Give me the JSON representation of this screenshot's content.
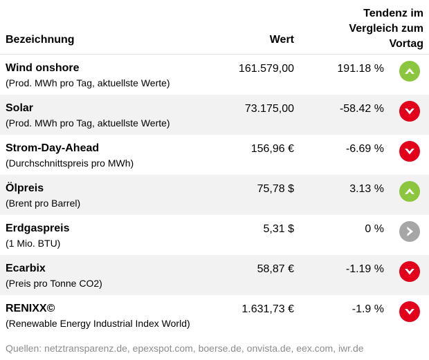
{
  "header": {
    "name_label": "Bezeichnung",
    "value_label": "Wert",
    "trend_label_lines": [
      "Tendenz im",
      "Vergleich zum",
      "Vortag"
    ]
  },
  "rows": [
    {
      "name": "Wind onshore",
      "sub": "(Prod. MWh pro Tag, aktuellste Werte)",
      "value": "161.579,00",
      "pct": "191.18 %",
      "trend": "up",
      "trend_icon": "arrow-up-icon"
    },
    {
      "name": "Solar",
      "sub": "(Prod. MWh pro Tag, aktuellste Werte)",
      "value": "73.175,00",
      "pct": "-58.42 %",
      "trend": "down",
      "trend_icon": "arrow-down-icon"
    },
    {
      "name": "Strom-Day-Ahead",
      "sub": "(Durchschnittspreis pro MWh)",
      "value": "156,96 €",
      "pct": "-6.69 %",
      "trend": "down",
      "trend_icon": "arrow-down-icon"
    },
    {
      "name": "Ölpreis",
      "sub": "(Brent pro Barrel)",
      "value": "75,78 $",
      "pct": "3.13 %",
      "trend": "up",
      "trend_icon": "arrow-up-icon"
    },
    {
      "name": "Erdgaspreis",
      "sub": "(1 Mio. BTU)",
      "value": "5,31 $",
      "pct": "0 %",
      "trend": "flat",
      "trend_icon": "arrow-right-icon"
    },
    {
      "name": "Ecarbix",
      "sub": "(Preis pro Tonne CO2)",
      "value": "58,87 €",
      "pct": "-1.19 %",
      "trend": "down",
      "trend_icon": "arrow-down-icon"
    },
    {
      "name": "RENIXX©",
      "sub": "(Renewable Energy Industrial Index World)",
      "value": "1.631,73 €",
      "pct": "-1.9 %",
      "trend": "down",
      "trend_icon": "arrow-down-icon"
    }
  ],
  "footer": "Quellen: netztransparenz.de, epexspot.com, boerse.de, onvista.de, eex.com, iwr.de",
  "colors": {
    "up": "#8cc63f",
    "down": "#e3001b",
    "flat": "#a6a6a6",
    "alt_row": "#f2f2f2",
    "footer_text": "#8c8c8c"
  }
}
